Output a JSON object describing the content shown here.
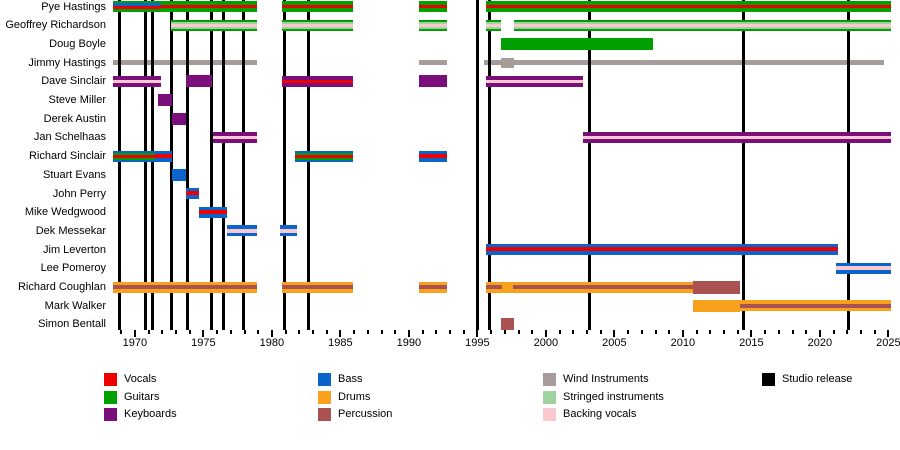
{
  "chart_data": {
    "type": "timeline",
    "description": "Band line-up timeline with instrument stripes per member and studio release markers",
    "axis": {
      "year_min": 1968.4,
      "year_max": 2025.2,
      "minor_tick_step": 1,
      "major_tick_step": 5,
      "major_tick_years": [
        1970,
        1975,
        1980,
        1985,
        1990,
        1995,
        2000,
        2005,
        2010,
        2015,
        2020,
        2025
      ],
      "grid": false
    },
    "colors": {
      "vocals": "#ee0000",
      "guitars": "#00a000",
      "keyboards": "#7a0e7a",
      "bass": "#0b63cc",
      "drums": "#f7a11d",
      "percussion": "#aa5252",
      "wind": "#a79c9c",
      "strings": "#a0d2a0",
      "backing": "#f9c9cf",
      "release": "#000000"
    },
    "patterns": {
      "guitars_vocals_bass": [
        [
          "guitars",
          2
        ],
        [
          "bass",
          3
        ],
        [
          "vocals",
          3
        ],
        [
          "guitars",
          3
        ]
      ],
      "guitars_vocals": [
        [
          "guitars",
          4
        ],
        [
          "vocals",
          3
        ],
        [
          "guitars",
          4
        ]
      ],
      "guitars_strings_backing": [
        [
          "guitars",
          2
        ],
        [
          "strings",
          2
        ],
        [
          "backing",
          3
        ],
        [
          "strings",
          2
        ],
        [
          "guitars",
          2
        ]
      ],
      "guitars_solid": [
        [
          "guitars",
          1
        ]
      ],
      "wind_solid": [
        [
          "wind",
          1
        ]
      ],
      "keys_backing": [
        [
          "keyboards",
          4
        ],
        [
          "backing",
          3
        ],
        [
          "keyboards",
          4
        ]
      ],
      "keys_vocals": [
        [
          "keyboards",
          4
        ],
        [
          "vocals",
          3
        ],
        [
          "keyboards",
          4
        ]
      ],
      "keys_solid": [
        [
          "keyboards",
          1
        ]
      ],
      "bass_guitars_vocals": [
        [
          "bass",
          2
        ],
        [
          "guitars",
          2
        ],
        [
          "vocals",
          3
        ],
        [
          "guitars",
          2
        ],
        [
          "bass",
          2
        ]
      ],
      "bass_vocals": [
        [
          "bass",
          3
        ],
        [
          "vocals",
          4
        ],
        [
          "bass",
          4
        ]
      ],
      "bass_backing": [
        [
          "bass",
          3
        ],
        [
          "backing",
          3
        ],
        [
          "bass",
          3
        ]
      ],
      "bass_solid": [
        [
          "bass",
          1
        ]
      ],
      "drums_percussion": [
        [
          "drums",
          3
        ],
        [
          "percussion",
          3
        ],
        [
          "drums",
          3
        ]
      ],
      "drums_solid": [
        [
          "drums",
          1
        ]
      ],
      "percussion_solid": [
        [
          "percussion",
          1
        ]
      ]
    },
    "members": [
      {
        "name": "Pye Hastings",
        "segments": [
          {
            "start": 1968.4,
            "end": 1971.9,
            "pattern": "guitars_vocals_bass"
          },
          {
            "start": 1971.9,
            "end": 1978.9,
            "pattern": "guitars_vocals"
          },
          {
            "start": 1980.7,
            "end": 1985.9,
            "pattern": "guitars_vocals"
          },
          {
            "start": 1990.7,
            "end": 1992.8,
            "pattern": "guitars_vocals"
          },
          {
            "start": 1995.6,
            "end": 2025.2,
            "pattern": "guitars_vocals"
          }
        ]
      },
      {
        "name": "Geoffrey Richardson",
        "segments": [
          {
            "start": 1972.6,
            "end": 1978.9,
            "pattern": "guitars_strings_backing"
          },
          {
            "start": 1980.7,
            "end": 1985.9,
            "pattern": "guitars_strings_backing"
          },
          {
            "start": 1990.7,
            "end": 1992.8,
            "pattern": "guitars_strings_backing"
          },
          {
            "start": 1995.6,
            "end": 1996.7,
            "pattern": "guitars_strings_backing"
          },
          {
            "start": 1997.7,
            "end": 2025.2,
            "pattern": "guitars_strings_backing"
          }
        ]
      },
      {
        "name": "Doug Boyle",
        "segments": [
          {
            "start": 1996.7,
            "end": 2007.8,
            "pattern": "guitars_solid",
            "h": 12
          }
        ]
      },
      {
        "name": "Jimmy Hastings",
        "segments": [
          {
            "start": 1968.4,
            "end": 1978.9,
            "pattern": "wind_solid",
            "h": 5
          },
          {
            "start": 1990.7,
            "end": 1992.8,
            "pattern": "wind_solid",
            "h": 5
          },
          {
            "start": 1995.5,
            "end": 1996.7,
            "pattern": "wind_solid",
            "h": 5
          },
          {
            "start": 1996.7,
            "end": 1997.7,
            "pattern": "wind_solid",
            "h": 10
          },
          {
            "start": 1997.7,
            "end": 2024.7,
            "pattern": "wind_solid",
            "h": 5
          }
        ]
      },
      {
        "name": "Dave Sinclair",
        "segments": [
          {
            "start": 1968.4,
            "end": 1971.9,
            "pattern": "keys_backing"
          },
          {
            "start": 1973.7,
            "end": 1975.6,
            "pattern": "keys_solid",
            "h": 12
          },
          {
            "start": 1980.7,
            "end": 1985.9,
            "pattern": "keys_vocals"
          },
          {
            "start": 1990.7,
            "end": 1992.8,
            "pattern": "keys_solid",
            "h": 12
          },
          {
            "start": 1995.6,
            "end": 2002.7,
            "pattern": "keys_backing"
          }
        ]
      },
      {
        "name": "Steve Miller",
        "segments": [
          {
            "start": 1971.7,
            "end": 1972.7,
            "pattern": "keys_solid",
            "h": 12
          }
        ]
      },
      {
        "name": "Derek Austin",
        "segments": [
          {
            "start": 1972.7,
            "end": 1973.7,
            "pattern": "keys_solid",
            "h": 12
          }
        ]
      },
      {
        "name": "Jan Schelhaas",
        "segments": [
          {
            "start": 1975.7,
            "end": 1978.9,
            "pattern": "keys_backing"
          },
          {
            "start": 2002.7,
            "end": 2025.2,
            "pattern": "keys_backing"
          }
        ]
      },
      {
        "name": "Richard Sinclair",
        "segments": [
          {
            "start": 1968.4,
            "end": 1971.5,
            "pattern": "bass_guitars_vocals"
          },
          {
            "start": 1971.5,
            "end": 1972.7,
            "pattern": "bass_vocals"
          },
          {
            "start": 1981.7,
            "end": 1985.9,
            "pattern": "bass_guitars_vocals"
          },
          {
            "start": 1990.7,
            "end": 1992.8,
            "pattern": "bass_vocals"
          }
        ]
      },
      {
        "name": "Stuart Evans",
        "segments": [
          {
            "start": 1972.7,
            "end": 1973.7,
            "pattern": "bass_solid",
            "h": 12
          }
        ]
      },
      {
        "name": "John Perry",
        "segments": [
          {
            "start": 1973.7,
            "end": 1974.7,
            "pattern": "bass_vocals"
          }
        ]
      },
      {
        "name": "Mike Wedgwood",
        "segments": [
          {
            "start": 1974.7,
            "end": 1976.7,
            "pattern": "bass_vocals"
          }
        ]
      },
      {
        "name": "Dek Messekar",
        "segments": [
          {
            "start": 1976.7,
            "end": 1978.9,
            "pattern": "bass_backing"
          },
          {
            "start": 1980.6,
            "end": 1981.8,
            "pattern": "bass_backing"
          }
        ]
      },
      {
        "name": "Jim Leverton",
        "segments": [
          {
            "start": 1995.6,
            "end": 2021.3,
            "pattern": "bass_vocals"
          }
        ]
      },
      {
        "name": "Lee Pomeroy",
        "segments": [
          {
            "start": 2021.2,
            "end": 2025.2,
            "pattern": "bass_backing"
          }
        ]
      },
      {
        "name": "Richard Coughlan",
        "segments": [
          {
            "start": 1968.4,
            "end": 1978.9,
            "pattern": "drums_percussion"
          },
          {
            "start": 1980.7,
            "end": 1985.9,
            "pattern": "drums_percussion"
          },
          {
            "start": 1990.7,
            "end": 1992.8,
            "pattern": "drums_percussion"
          },
          {
            "start": 1995.6,
            "end": 1996.8,
            "pattern": "drums_percussion"
          },
          {
            "start": 1996.8,
            "end": 1997.6,
            "pattern": "drums_solid"
          },
          {
            "start": 1997.6,
            "end": 2010.7,
            "pattern": "drums_percussion"
          },
          {
            "start": 2010.7,
            "end": 2014.2,
            "pattern": "percussion_solid",
            "h": 13
          }
        ]
      },
      {
        "name": "Mark Walker",
        "segments": [
          {
            "start": 2010.7,
            "end": 2014.2,
            "pattern": "drums_solid",
            "h": 12
          },
          {
            "start": 2014.2,
            "end": 2025.2,
            "pattern": "drums_percussion"
          }
        ]
      },
      {
        "name": "Simon Bentall",
        "segments": [
          {
            "start": 1996.7,
            "end": 1997.7,
            "pattern": "percussion_solid",
            "h": 12
          }
        ]
      }
    ],
    "studio_releases": [
      1968.85,
      1970.75,
      1971.3,
      1972.65,
      1973.85,
      1975.6,
      1976.5,
      1977.9,
      1980.9,
      1982.65,
      1995.0,
      1995.9,
      2003.2,
      2014.4,
      2022.05
    ]
  },
  "legend": {
    "columns": [
      {
        "items": [
          {
            "label": "Vocals",
            "color": "vocals"
          },
          {
            "label": "Guitars",
            "color": "guitars"
          },
          {
            "label": "Keyboards",
            "color": "keyboards"
          }
        ]
      },
      {
        "items": [
          {
            "label": "Bass",
            "color": "bass"
          },
          {
            "label": "Drums",
            "color": "drums"
          },
          {
            "label": "Percussion",
            "color": "percussion"
          }
        ]
      },
      {
        "items": [
          {
            "label": "Wind Instruments",
            "color": "wind"
          },
          {
            "label": "Stringed instruments",
            "color": "strings"
          },
          {
            "label": "Backing vocals",
            "color": "backing"
          }
        ]
      },
      {
        "items": [
          {
            "label": "Studio release",
            "color": "release"
          }
        ]
      }
    ]
  }
}
